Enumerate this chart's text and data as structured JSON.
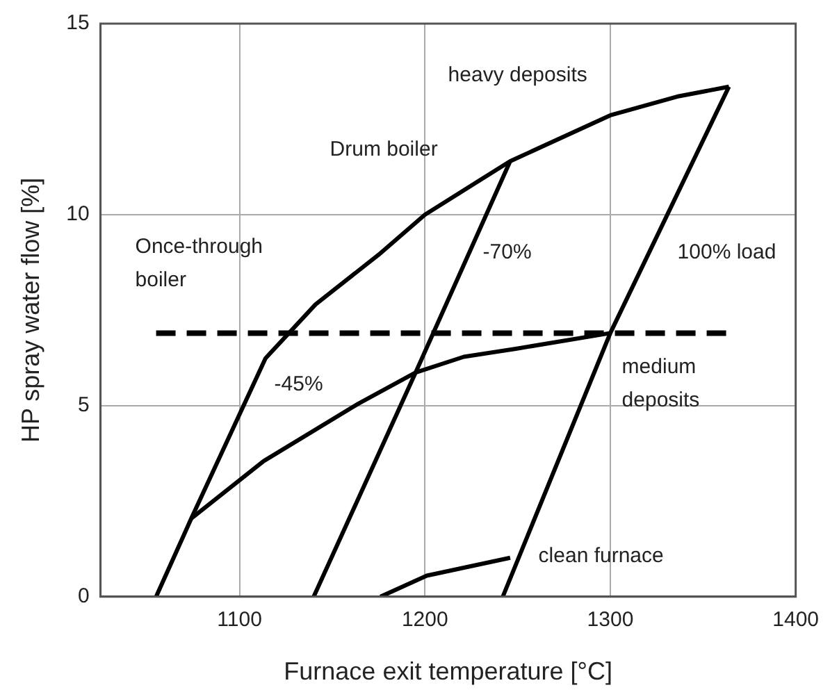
{
  "chart_data": {
    "type": "line",
    "xlabel": "Furnace exit temperature [°C]",
    "ylabel": "HP spray water flow [%]",
    "xlim": [
      1025,
      1400
    ],
    "xticks": [
      1100,
      1200,
      1300,
      1400
    ],
    "ylim": [
      0,
      15
    ],
    "yticks": [
      0,
      5,
      10,
      15
    ],
    "grid": true,
    "legend": false,
    "marker": "none",
    "line_style": "solid",
    "series": [
      {
        "color": "#000000",
        "x": [
          1055,
          1074,
          1114,
          1141,
          1175,
          1200,
          1246,
          1300,
          1337,
          1364
        ],
        "values": [
          0,
          2.05,
          6.24,
          7.65,
          8.95,
          10,
          11.4,
          12.6,
          13.1,
          13.35
        ]
      },
      {
        "color": "#000000",
        "x": [
          1074,
          1113,
          1164,
          1195,
          1221,
          1249,
          1300
        ],
        "values": [
          2.05,
          3.55,
          5.05,
          5.87,
          6.28,
          6.49,
          6.9
        ]
      },
      {
        "color": "#000000",
        "x": [
          1140,
          1195,
          1246
        ],
        "values": [
          0,
          5.87,
          11.4
        ]
      },
      {
        "color": "#000000",
        "x": [
          1242,
          1300,
          1364
        ],
        "values": [
          0,
          6.9,
          13.35
        ]
      },
      {
        "color": "#000000",
        "x": [
          1176,
          1201,
          1246
        ],
        "values": [
          0,
          0.55,
          1.02
        ]
      },
      {
        "color": "#000000",
        "line_style": "dashed",
        "x": [
          1055,
          1363
        ],
        "values": [
          6.9,
          6.9
        ]
      }
    ],
    "annotations": [
      "heavy deposits",
      "Drum boiler",
      "Once-through\nboiler",
      "-70%",
      "100% load",
      "-45%",
      "medium\ndeposits",
      "clean furnace"
    ]
  }
}
